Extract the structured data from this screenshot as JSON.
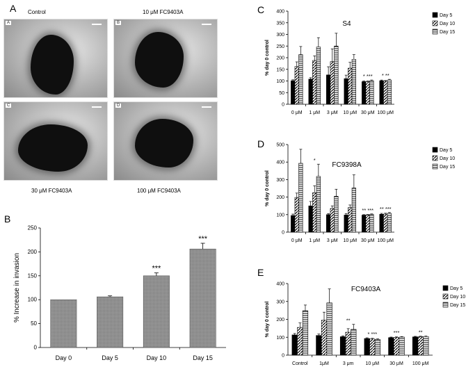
{
  "panel_letters": {
    "a": "A",
    "b": "B",
    "c": "C",
    "d": "D",
    "e": "E"
  },
  "micrographs": {
    "captions": {
      "control": "Control",
      "fc10": "10 μM FC9403A",
      "fc30": "30 μM FC9403A",
      "fc100": "100 μM FC9403A"
    },
    "tags": [
      "A",
      "B",
      "C",
      "D"
    ]
  },
  "colors": {
    "bar_gray": "#8c8c8c",
    "axis": "#000000"
  },
  "chart_data": [
    {
      "id": "B",
      "type": "bar",
      "title": "",
      "ylabel": "% Increase in invasion",
      "xlabel": "",
      "categories": [
        "Day 0",
        "Day 5",
        "Day 10",
        "Day 15"
      ],
      "values": [
        100,
        106,
        150,
        206
      ],
      "errors": [
        0,
        2,
        6,
        12
      ],
      "annotations": [
        "",
        "",
        "***",
        "***"
      ],
      "ylim": [
        0,
        250
      ],
      "yticks": [
        0,
        50,
        100,
        150,
        200,
        250
      ]
    },
    {
      "id": "C",
      "type": "bar",
      "title": "S4",
      "ylabel": "% day 0 control",
      "categories": [
        "0 μM",
        "1 μM",
        "3 μM",
        "10 μM",
        "30 μM",
        "100 μM"
      ],
      "series": [
        {
          "name": "Day 5",
          "pattern": "solid",
          "values": [
            101,
            108,
            126,
            110,
            97,
            101
          ],
          "errors": [
            4,
            6,
            35,
            15,
            3,
            3
          ]
        },
        {
          "name": "Day 10",
          "pattern": "diag",
          "values": [
            162,
            188,
            183,
            155,
            97,
            99
          ],
          "errors": [
            20,
            20,
            55,
            25,
            3,
            3
          ]
        },
        {
          "name": "Day 15",
          "pattern": "horiz",
          "values": [
            213,
            246,
            250,
            193,
            101,
            104
          ],
          "errors": [
            35,
            40,
            55,
            20,
            3,
            3
          ]
        }
      ],
      "annotations": [
        "",
        "",
        "",
        "",
        "* ***",
        "* **"
      ],
      "ylim": [
        0,
        400
      ],
      "yticks": [
        0,
        50,
        100,
        150,
        200,
        250,
        300,
        350,
        400
      ],
      "legend": "top-right"
    },
    {
      "id": "D",
      "type": "bar",
      "title": "FC9398A",
      "ylabel": "% day 0 control",
      "categories": [
        "0 μM",
        "1 μM",
        "3 μM",
        "10 μM",
        "30 μM",
        "100 μM"
      ],
      "series": [
        {
          "name": "Day 5",
          "pattern": "solid",
          "values": [
            95,
            150,
            100,
            98,
            97,
            102
          ],
          "errors": [
            8,
            25,
            6,
            8,
            3,
            5
          ]
        },
        {
          "name": "Day 10",
          "pattern": "diag",
          "values": [
            198,
            225,
            135,
            140,
            98,
            103
          ],
          "errors": [
            25,
            40,
            15,
            15,
            3,
            5
          ]
        },
        {
          "name": "Day 15",
          "pattern": "horiz",
          "values": [
            393,
            318,
            205,
            252,
            101,
            107
          ],
          "errors": [
            80,
            70,
            40,
            75,
            3,
            5
          ]
        }
      ],
      "annotations": [
        "",
        "*",
        "",
        "",
        "** ***",
        "** ***"
      ],
      "ylim": [
        0,
        500
      ],
      "yticks": [
        0,
        100,
        200,
        300,
        400,
        500
      ],
      "legend": "top-right"
    },
    {
      "id": "E",
      "type": "bar",
      "title": "FC9403A",
      "ylabel": "% day 0 control",
      "categories": [
        "Control",
        "1μM",
        "3 μm",
        "10 μM",
        "30 μM",
        "100 μM"
      ],
      "series": [
        {
          "name": "Day 5",
          "pattern": "solid",
          "values": [
            113,
            110,
            103,
            93,
            98,
            102
          ],
          "errors": [
            8,
            8,
            5,
            4,
            3,
            3
          ]
        },
        {
          "name": "Day 10",
          "pattern": "diag",
          "values": [
            155,
            195,
            128,
            90,
            99,
            103
          ],
          "errors": [
            25,
            45,
            20,
            4,
            3,
            3
          ]
        },
        {
          "name": "Day 15",
          "pattern": "horiz",
          "values": [
            248,
            292,
            144,
            87,
            101,
            104
          ],
          "errors": [
            32,
            78,
            28,
            4,
            3,
            3
          ]
        }
      ],
      "annotations": [
        "",
        "",
        "**",
        "* ***",
        "***",
        "**"
      ],
      "ylim": [
        0,
        400
      ],
      "yticks": [
        0,
        100,
        200,
        300,
        400
      ],
      "legend": "top-right"
    }
  ]
}
